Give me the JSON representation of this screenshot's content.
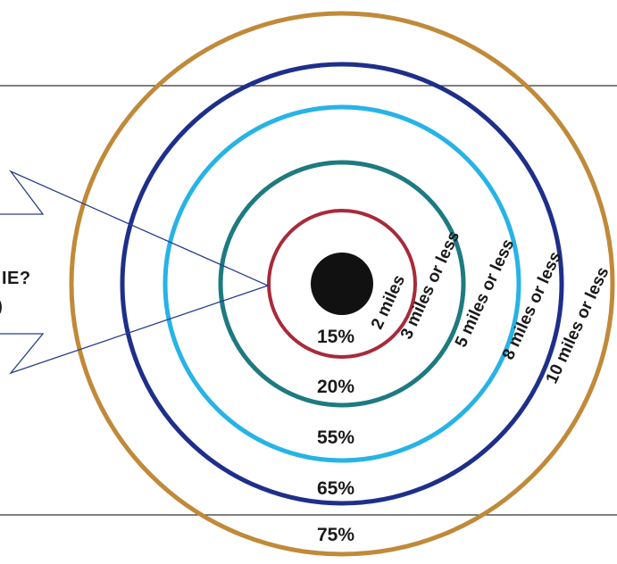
{
  "callout": {
    "title_fragment": "IE?",
    "sub_fragment": ")"
  },
  "rings": [
    {
      "distance_label": "2 miles",
      "percent": "15%",
      "color": "#a82a3a"
    },
    {
      "distance_label": "3 miles or less",
      "percent": "20%",
      "color": "#1d7a80"
    },
    {
      "distance_label": "5 miles or less",
      "percent": "55%",
      "color": "#27b3e6"
    },
    {
      "distance_label": "8 miles or less",
      "percent": "65%",
      "color": "#1e2f8a"
    },
    {
      "distance_label": "10 miles or less",
      "percent": "75%",
      "color": "#c08a3a"
    }
  ],
  "center": {
    "color": "#111111"
  },
  "lines": {
    "color": "#333333"
  },
  "callout_border_color": "#2a3e8c"
}
